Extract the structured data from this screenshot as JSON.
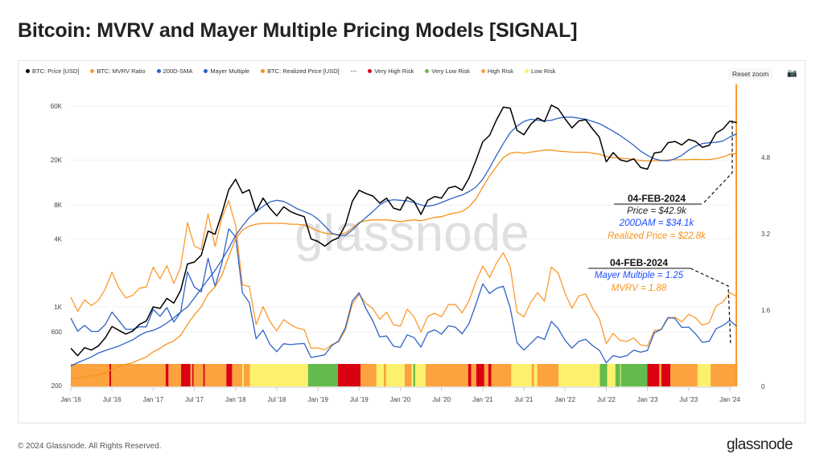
{
  "title": "Bitcoin: MVRV and Mayer Multiple Pricing Models [SIGNAL]",
  "footer": "© 2024 Glassnode. All Rights Reserved.",
  "logo": "glassnode",
  "watermark": "glassnode",
  "toolbar": {
    "reset_zoom": "Reset zoom",
    "camera_icon": "camera-icon"
  },
  "legend": [
    {
      "label": "BTC: Price [USD]",
      "color": "#000000"
    },
    {
      "label": "BTC: MVRV Ratio",
      "color": "#fb9a2e"
    },
    {
      "label": "200D-SMA",
      "color": "#2f63c4"
    },
    {
      "label": "Mayer Multiple",
      "color": "#2f63c4"
    },
    {
      "label": "BTC: Realized Price [USD]",
      "color": "#f7931a"
    },
    {
      "label": "---",
      "color": ""
    },
    {
      "label": "Very High Risk",
      "color": "#d90012"
    },
    {
      "label": "Very Low Risk",
      "color": "#62bb4c"
    },
    {
      "label": "High Risk",
      "color": "#fca23e"
    },
    {
      "label": "Low Risk",
      "color": "#fdf06d"
    }
  ],
  "annotations": {
    "price_box": {
      "date": "04-FEB-2024",
      "line1": "Price = $42.9k",
      "line2": "200DAM = $34.1k",
      "line3": "Realized Price = $22.8k"
    },
    "ratio_box": {
      "date": "04-FEB-2024",
      "line1": "Mayer Multiple = 1.25",
      "line2": "MVRV = 1.88"
    }
  },
  "chart_data": {
    "type": "line",
    "title": "Bitcoin: MVRV and Mayer Multiple Pricing Models [SIGNAL]",
    "x_start": "2016-01",
    "x_end": "2024-02",
    "x_resolution": "monthly",
    "x_ticks": [
      "Jan '16",
      "Jul '16",
      "Jan '17",
      "Jul '17",
      "Jan '18",
      "Jul '18",
      "Jan '19",
      "Jul '19",
      "Jan '20",
      "Jul '20",
      "Jan '21",
      "Jul '21",
      "Jan '22",
      "Jul '22",
      "Jan '23",
      "Jul '23",
      "Jan '24"
    ],
    "y_left": {
      "scale": "log",
      "range": [
        200,
        80000
      ],
      "ticks": [
        {
          "v": 200,
          "l": "200"
        },
        {
          "v": 600,
          "l": "600"
        },
        {
          "v": 1000,
          "l": "1K"
        },
        {
          "v": 4000,
          "l": "4K"
        },
        {
          "v": 8000,
          "l": "8K"
        },
        {
          "v": 20000,
          "l": "20K"
        },
        {
          "v": 60000,
          "l": "60K"
        }
      ]
    },
    "y_right": {
      "scale": "linear",
      "range": [
        0,
        6.4
      ],
      "ticks": [
        {
          "v": 0,
          "l": "0"
        },
        {
          "v": 1.6,
          "l": "1.6"
        },
        {
          "v": 3.2,
          "l": "3.2"
        },
        {
          "v": 4.8,
          "l": "4.8"
        }
      ]
    },
    "grid": true,
    "legend_placement": "top-left",
    "series": [
      {
        "name": "BTC: Price [USD]",
        "axis": "left",
        "color": "#000000",
        "values": [
          430,
          370,
          435,
          415,
          450,
          530,
          670,
          620,
          575,
          610,
          700,
          750,
          1000,
          970,
          1190,
          1080,
          1400,
          2400,
          2500,
          2870,
          4700,
          4400,
          6700,
          10900,
          13500,
          10200,
          10900,
          7000,
          9200,
          7500,
          6400,
          7700,
          7000,
          6600,
          6300,
          4000,
          3800,
          3450,
          3850,
          4100,
          5300,
          8600,
          10800,
          10100,
          9600,
          8300,
          9200,
          7500,
          7200,
          9400,
          8600,
          6600,
          8800,
          9500,
          9200,
          11300,
          11700,
          10800,
          13800,
          19700,
          29000,
          33100,
          45200,
          58800,
          57700,
          36700,
          33500,
          41500,
          47100,
          43800,
          61300,
          57000,
          46300,
          38500,
          44400,
          45500,
          37700,
          31800,
          19300,
          23300,
          20100,
          19400,
          20500,
          17200,
          16600,
          23100,
          23600,
          28500,
          29200,
          27200,
          30500,
          29200,
          25900,
          27000,
          34700,
          37700,
          44200,
          42900
        ]
      },
      {
        "name": "200D-SMA",
        "axis": "left",
        "color": "#2f63c4",
        "values": [
          300,
          320,
          340,
          360,
          390,
          410,
          430,
          450,
          480,
          510,
          560,
          600,
          620,
          660,
          720,
          800,
          900,
          1000,
          1200,
          1450,
          1750,
          2100,
          2600,
          3300,
          4300,
          5200,
          6200,
          7000,
          7800,
          8500,
          8800,
          8600,
          8000,
          7400,
          7000,
          6600,
          6000,
          5200,
          4500,
          4300,
          4300,
          4800,
          5500,
          6200,
          7000,
          8000,
          8700,
          8900,
          8800,
          8700,
          8400,
          8000,
          7800,
          8000,
          8400,
          8900,
          9400,
          9800,
          10500,
          11500,
          13500,
          17000,
          22000,
          28000,
          35000,
          40000,
          44000,
          46000,
          45000,
          44500,
          45000,
          47000,
          48000,
          48000,
          47000,
          46000,
          44000,
          42000,
          39000,
          36000,
          33000,
          30000,
          27000,
          24000,
          22000,
          20500,
          19800,
          19700,
          20500,
          22000,
          24500,
          26500,
          28000,
          28500,
          28700,
          29500,
          32000,
          34100
        ]
      },
      {
        "name": "BTC: Realized Price [USD]",
        "axis": "left",
        "color": "#f7931a",
        "values": [
          230,
          235,
          240,
          245,
          250,
          260,
          280,
          300,
          310,
          320,
          340,
          360,
          400,
          430,
          470,
          500,
          560,
          700,
          850,
          1000,
          1300,
          1500,
          1900,
          2800,
          4000,
          4800,
          5200,
          5400,
          5500,
          5500,
          5500,
          5500,
          5400,
          5400,
          5300,
          5000,
          4700,
          4500,
          4400,
          4400,
          4500,
          5000,
          5600,
          5800,
          5900,
          5900,
          5900,
          5800,
          5700,
          5800,
          5900,
          5800,
          6000,
          6200,
          6300,
          6600,
          6800,
          7000,
          7700,
          9000,
          11500,
          14500,
          17500,
          21000,
          23000,
          23500,
          23000,
          23500,
          24000,
          24500,
          24500,
          24000,
          23800,
          23500,
          23400,
          23500,
          23000,
          22500,
          21500,
          21000,
          20800,
          20600,
          20200,
          19800,
          19600,
          19700,
          19800,
          20000,
          20100,
          20100,
          20200,
          20300,
          20200,
          20200,
          20600,
          21300,
          22500,
          22800
        ]
      },
      {
        "name": "BTC: MVRV Ratio",
        "axis": "right",
        "color": "#fb9a2e",
        "derived": "price / realized price",
        "latest": 1.88
      },
      {
        "name": "Mayer Multiple",
        "axis": "right",
        "color": "#2f63c4",
        "derived": "price / 200D-SMA",
        "latest": 1.25
      }
    ],
    "risk_band": {
      "colors": {
        "Very High Risk": "#d90012",
        "Very Low Risk": "#62bb4c",
        "High Risk": "#fca23e",
        "Low Risk": "#fdf06d"
      },
      "segments": [
        [
          "2016-01-01",
          "2016-06-20",
          "High Risk"
        ],
        [
          "2016-06-20",
          "2016-06-28",
          "Very High Risk"
        ],
        [
          "2016-06-28",
          "2017-02-26",
          "High Risk"
        ],
        [
          "2017-02-26",
          "2017-03-08",
          "Very High Risk"
        ],
        [
          "2017-03-08",
          "2017-05-03",
          "High Risk"
        ],
        [
          "2017-05-03",
          "2017-06-14",
          "Very High Risk"
        ],
        [
          "2017-06-14",
          "2017-06-22",
          "High Risk"
        ],
        [
          "2017-06-22",
          "2017-06-28",
          "Very High Risk"
        ],
        [
          "2017-06-28",
          "2017-08-10",
          "High Risk"
        ],
        [
          "2017-08-10",
          "2017-08-17",
          "Very High Risk"
        ],
        [
          "2017-08-17",
          "2017-11-21",
          "High Risk"
        ],
        [
          "2017-11-21",
          "2017-12-16",
          "Very High Risk"
        ],
        [
          "2017-12-16",
          "2018-01-31",
          "High Risk"
        ],
        [
          "2018-01-31",
          "2018-02-07",
          "Low Risk"
        ],
        [
          "2018-02-07",
          "2018-03-04",
          "High Risk"
        ],
        [
          "2018-03-04",
          "2018-11-18",
          "Low Risk"
        ],
        [
          "2018-11-18",
          "2019-03-29",
          "Very Low Risk"
        ],
        [
          "2019-03-29",
          "2019-07-07",
          "Very High Risk"
        ],
        [
          "2019-07-07",
          "2019-09-17",
          "High Risk"
        ],
        [
          "2019-09-17",
          "2019-10-19",
          "Low Risk"
        ],
        [
          "2019-10-19",
          "2019-10-29",
          "High Risk"
        ],
        [
          "2019-10-29",
          "2020-01-20",
          "Low Risk"
        ],
        [
          "2020-01-20",
          "2020-02-21",
          "High Risk"
        ],
        [
          "2020-02-21",
          "2020-02-28",
          "Low Risk"
        ],
        [
          "2020-02-28",
          "2020-03-06",
          "Very Low Risk"
        ],
        [
          "2020-03-06",
          "2020-04-22",
          "Low Risk"
        ],
        [
          "2020-04-22",
          "2020-10-28",
          "High Risk"
        ],
        [
          "2020-10-28",
          "2020-11-11",
          "Very High Risk"
        ],
        [
          "2020-11-11",
          "2020-12-03",
          "High Risk"
        ],
        [
          "2020-12-03",
          "2021-01-08",
          "Very High Risk"
        ],
        [
          "2021-01-08",
          "2021-01-26",
          "High Risk"
        ],
        [
          "2021-01-26",
          "2021-02-09",
          "Very High Risk"
        ],
        [
          "2021-02-09",
          "2021-05-06",
          "High Risk"
        ],
        [
          "2021-05-06",
          "2021-08-05",
          "Low Risk"
        ],
        [
          "2021-08-05",
          "2021-08-16",
          "High Risk"
        ],
        [
          "2021-08-16",
          "2021-08-30",
          "Low Risk"
        ],
        [
          "2021-08-30",
          "2021-09-17",
          "High Risk"
        ],
        [
          "2021-09-17",
          "2021-12-02",
          "High Risk"
        ],
        [
          "2021-12-02",
          "2022-06-03",
          "Low Risk"
        ],
        [
          "2022-06-03",
          "2022-07-05",
          "Very Low Risk"
        ],
        [
          "2022-07-05",
          "2022-08-11",
          "Low Risk"
        ],
        [
          "2022-08-11",
          "2022-09-02",
          "Very Low Risk"
        ],
        [
          "2022-09-02",
          "2022-09-05",
          "Low Risk"
        ],
        [
          "2022-09-05",
          "2022-12-31",
          "Very Low Risk"
        ],
        [
          "2022-12-31",
          "2023-02-23",
          "Very High Risk"
        ],
        [
          "2023-02-23",
          "2023-03-02",
          "High Risk"
        ],
        [
          "2023-03-02",
          "2023-04-11",
          "Very High Risk"
        ],
        [
          "2023-04-11",
          "2023-08-10",
          "High Risk"
        ],
        [
          "2023-08-10",
          "2023-10-07",
          "Low Risk"
        ],
        [
          "2023-10-07",
          "2024-02-04",
          "High Risk"
        ]
      ]
    }
  }
}
